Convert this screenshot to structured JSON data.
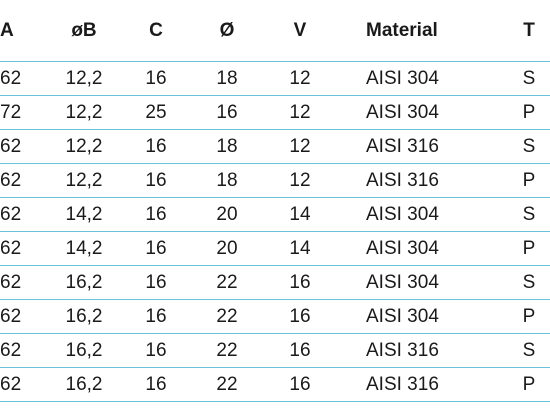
{
  "table": {
    "headers": [
      "A",
      "øB",
      "C",
      "Ø",
      "V",
      "Material",
      "T"
    ],
    "rows": [
      [
        "62",
        "12,2",
        "16",
        "18",
        "12",
        "AISI 304",
        "S"
      ],
      [
        "72",
        "12,2",
        "25",
        "16",
        "12",
        "AISI 304",
        "P"
      ],
      [
        "62",
        "12,2",
        "16",
        "18",
        "12",
        "AISI 316",
        "S"
      ],
      [
        "62",
        "12,2",
        "16",
        "18",
        "12",
        "AISI 316",
        "P"
      ],
      [
        "62",
        "14,2",
        "16",
        "20",
        "14",
        "AISI 304",
        "S"
      ],
      [
        "62",
        "14,2",
        "16",
        "20",
        "14",
        "AISI 304",
        "P"
      ],
      [
        "62",
        "16,2",
        "16",
        "22",
        "16",
        "AISI 304",
        "S"
      ],
      [
        "62",
        "16,2",
        "16",
        "22",
        "16",
        "AISI 304",
        "P"
      ],
      [
        "62",
        "16,2",
        "16",
        "22",
        "16",
        "AISI 316",
        "S"
      ],
      [
        "62",
        "16,2",
        "16",
        "22",
        "16",
        "AISI 316",
        "P"
      ]
    ]
  },
  "colors": {
    "rule": "#6cc3d8",
    "text": "#1a1a1a"
  }
}
